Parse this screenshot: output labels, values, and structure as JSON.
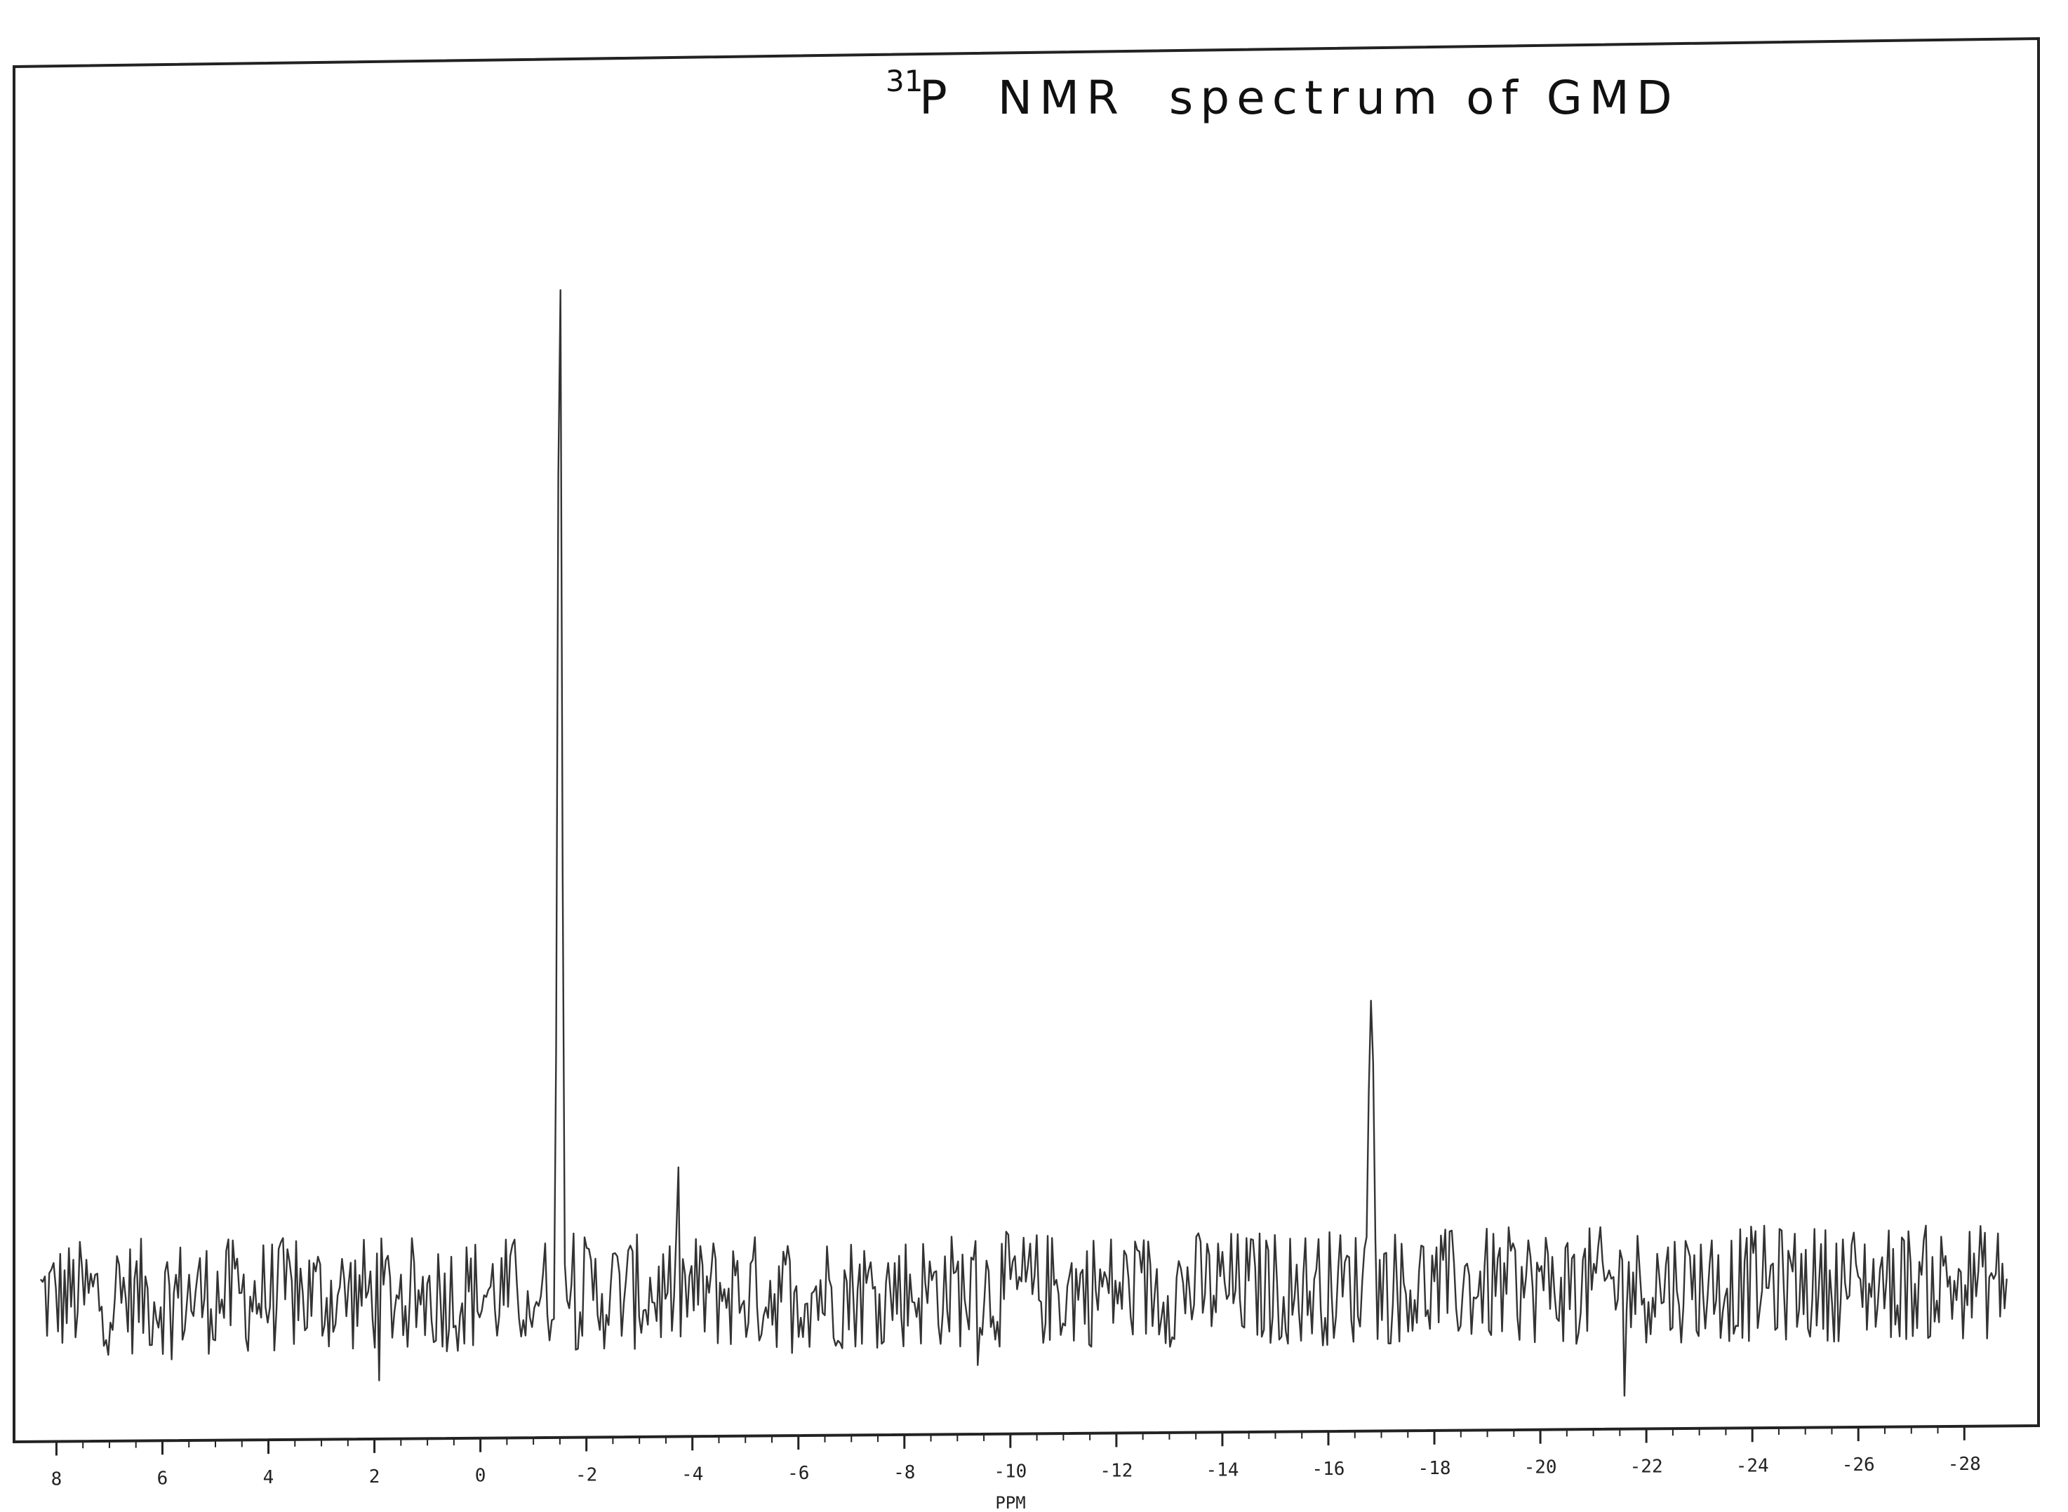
{
  "chart_data": {
    "type": "line",
    "title_superscript": "31",
    "title_main": "P  NMR  spectrum of GMD",
    "xlabel": "PPM",
    "ylabel": "",
    "x_reversed": true,
    "xlim": [
      8.8,
      -29.4
    ],
    "ylim": [
      0,
      1
    ],
    "grid": false,
    "ticks_labeled": [
      8,
      6,
      4,
      2,
      0,
      -2,
      -4,
      -6,
      -8,
      -10,
      -12,
      -14,
      -16,
      -18,
      -20,
      -22,
      -24,
      -26,
      -28
    ],
    "series": [
      {
        "baseline": 0.12,
        "noise_amplitude": 0.05,
        "peaks": [
          {
            "ppm": -1.5,
            "height": 0.86
          },
          {
            "ppm": -16.8,
            "height": 0.29
          }
        ]
      }
    ]
  }
}
